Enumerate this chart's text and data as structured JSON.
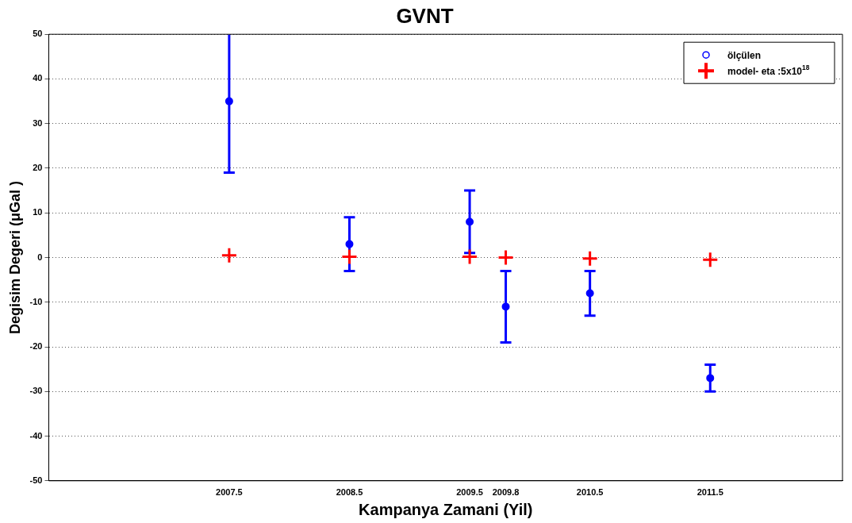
{
  "chart_data": {
    "type": "scatter",
    "title": "GVNT",
    "xlabel": "Kampanya Zamani (Yil)",
    "ylabel": "Degisim Degeri (μGal )",
    "x": [
      2007.5,
      2008.5,
      2009.5,
      2009.8,
      2010.5,
      2011.5
    ],
    "xlim": [
      2006,
      2012.6
    ],
    "xticks": [
      2007.5,
      2008.5,
      2009.5,
      2009.8,
      2010.5,
      2011.5
    ],
    "ylim": [
      -50,
      50
    ],
    "yticks": [
      -50,
      -40,
      -30,
      -20,
      -10,
      0,
      10,
      20,
      30,
      40,
      50
    ],
    "grid": "y",
    "legend": "top right",
    "series": [
      {
        "name": "ölçülen",
        "color": "#0000ff",
        "marker": "circle",
        "values": [
          35,
          3,
          8,
          -11,
          -8,
          -27
        ],
        "errors": [
          [
            19,
            50
          ],
          [
            -3,
            9
          ],
          [
            1,
            15
          ],
          [
            -19,
            -3
          ],
          [
            -13,
            -3
          ],
          [
            -30,
            -24
          ]
        ]
      },
      {
        "name": "model- eta :5x10$^{18}$",
        "color": "#ff0000",
        "marker": "cross",
        "values": [
          0.5,
          0.2,
          0.2,
          0,
          -0.2,
          -0.5
        ]
      }
    ]
  }
}
